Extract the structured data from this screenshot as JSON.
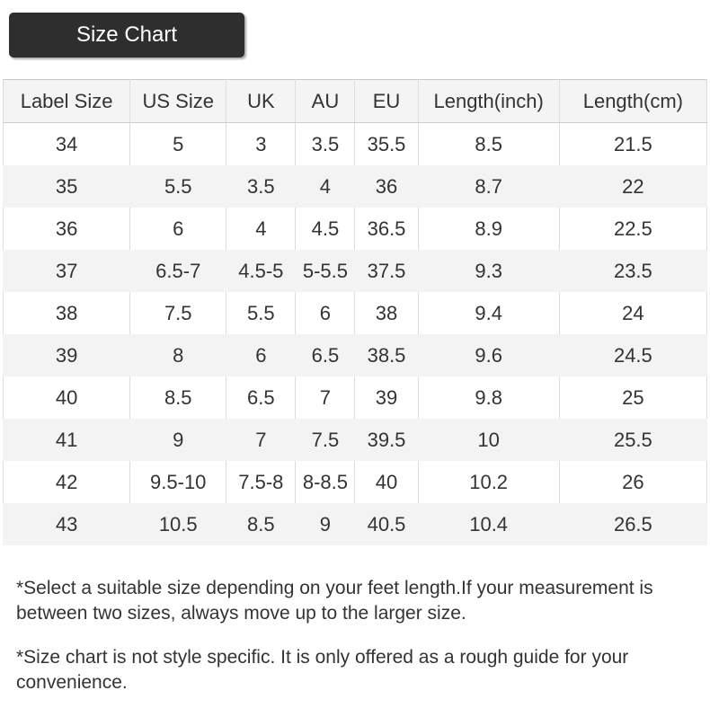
{
  "button": {
    "label": "Size Chart"
  },
  "chart_data": {
    "type": "table",
    "title": "Size Chart",
    "columns": [
      "Label Size",
      "US Size",
      "UK",
      "AU",
      "EU",
      "Length(inch)",
      "Length(cm)"
    ],
    "rows": [
      [
        "34",
        "5",
        "3",
        "3.5",
        "35.5",
        "8.5",
        "21.5"
      ],
      [
        "35",
        "5.5",
        "3.5",
        "4",
        "36",
        "8.7",
        "22"
      ],
      [
        "36",
        "6",
        "4",
        "4.5",
        "36.5",
        "8.9",
        "22.5"
      ],
      [
        "37",
        "6.5-7",
        "4.5-5",
        "5-5.5",
        "37.5",
        "9.3",
        "23.5"
      ],
      [
        "38",
        "7.5",
        "5.5",
        "6",
        "38",
        "9.4",
        "24"
      ],
      [
        "39",
        "8",
        "6",
        "6.5",
        "38.5",
        "9.6",
        "24.5"
      ],
      [
        "40",
        "8.5",
        "6.5",
        "7",
        "39",
        "9.8",
        "25"
      ],
      [
        "41",
        "9",
        "7",
        "7.5",
        "39.5",
        "10",
        "25.5"
      ],
      [
        "42",
        "9.5-10",
        "7.5-8",
        "8-8.5",
        "40",
        "10.2",
        "26"
      ],
      [
        "43",
        "10.5",
        "8.5",
        "9",
        "40.5",
        "10.4",
        "26.5"
      ]
    ],
    "layout_hints": {
      "striped_rows": "even data rows (35,37,39,41,43)",
      "grid": "vertical borders on header and white rows"
    }
  },
  "notes": [
    "*Select a suitable size depending on your feet length.If your measurement is between two sizes, always move up to the larger size.",
    "*Size chart is not style specific. It is only offered as a rough guide for your convenience."
  ],
  "colors": {
    "button_background": "#2f2e2e",
    "button_text": "#ffffff",
    "header_background": "#f4f4f4",
    "stripe_background": "#f3f3f3",
    "cell_border": "#dddddd",
    "text": "#333333",
    "page_background": "#ffffff"
  }
}
